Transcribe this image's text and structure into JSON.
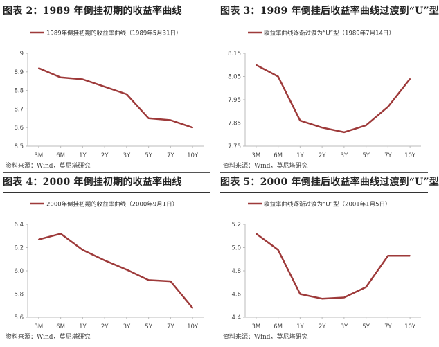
{
  "panels": [
    {
      "title": "图表 2：1989 年倒挂初期的收益率曲线",
      "source": "资料来源：Wind，莫尼塔研究"
    },
    {
      "title": "图表 3：1989 年倒挂后收益率曲线过渡到“U”型",
      "source": "资料来源：Wind，莫尼塔研究"
    },
    {
      "title": "图表 4：2000 年倒挂初期的收益率曲线",
      "source": "资料来源：Wind，莫尼塔研究"
    },
    {
      "title": "图表 5：2000 年倒挂后收益率曲线过渡到“U”型",
      "source": "资料来源：Wind，莫尼塔研究"
    }
  ],
  "colors": {
    "series": "#9e3a3a",
    "axis": "#bbbbbb",
    "tick_text": "#444444"
  },
  "chart_data": [
    {
      "type": "line",
      "categories": [
        "3M",
        "6M",
        "1Y",
        "2Y",
        "3Y",
        "5Y",
        "7Y",
        "10Y"
      ],
      "series": [
        {
          "name": "1989年倒挂初期的收益率曲线（1989年5月31日）",
          "values": [
            8.92,
            8.87,
            8.86,
            8.82,
            8.78,
            8.65,
            8.64,
            8.6
          ]
        }
      ],
      "ylim": [
        8.5,
        9
      ],
      "yticks": [
        8.5,
        8.6,
        8.7,
        8.8,
        8.9,
        9
      ],
      "ytick_labels": [
        "8.5",
        "8.6",
        "8.7",
        "8.8",
        "8.9",
        "9"
      ],
      "legend": "top-left",
      "grid": false
    },
    {
      "type": "line",
      "categories": [
        "3M",
        "6M",
        "1Y",
        "2Y",
        "3Y",
        "5Y",
        "7Y",
        "10Y"
      ],
      "series": [
        {
          "name": "收益率曲线逐渐过渡为“U”型（1989年7月14日）",
          "values": [
            8.1,
            8.05,
            7.86,
            7.83,
            7.81,
            7.84,
            7.92,
            8.04
          ]
        }
      ],
      "ylim": [
        7.75,
        8.15
      ],
      "yticks": [
        7.75,
        7.85,
        7.95,
        8.05,
        8.15
      ],
      "ytick_labels": [
        "7.75",
        "7.85",
        "7.95",
        "8.05",
        "8.15"
      ],
      "legend": "top-left",
      "grid": false
    },
    {
      "type": "line",
      "categories": [
        "3M",
        "6M",
        "1Y",
        "2Y",
        "3Y",
        "5Y",
        "7Y",
        "10Y"
      ],
      "series": [
        {
          "name": "2000年倒挂初期的收益率曲线（2000年9月1日）",
          "values": [
            6.27,
            6.32,
            6.18,
            6.09,
            6.01,
            5.92,
            5.91,
            5.68
          ]
        }
      ],
      "ylim": [
        5.6,
        6.4
      ],
      "yticks": [
        5.6,
        5.8,
        6.0,
        6.2,
        6.4
      ],
      "ytick_labels": [
        "5.6",
        "5.8",
        "6.0",
        "6.2",
        "6.4"
      ],
      "legend": "top-left",
      "grid": false
    },
    {
      "type": "line",
      "categories": [
        "3M",
        "6M",
        "1Y",
        "2Y",
        "3Y",
        "5Y",
        "7Y",
        "10Y"
      ],
      "series": [
        {
          "name": "收益率曲线逐渐过渡为“U”型（2001年1月5日）",
          "values": [
            5.12,
            4.98,
            4.6,
            4.56,
            4.57,
            4.66,
            4.93,
            4.93
          ]
        }
      ],
      "ylim": [
        4.4,
        5.2
      ],
      "yticks": [
        4.4,
        4.6,
        4.8,
        5.0,
        5.2
      ],
      "ytick_labels": [
        "4.4",
        "4.6",
        "4.8",
        "5.0",
        "5.2"
      ],
      "legend": "top-left",
      "grid": false
    }
  ]
}
